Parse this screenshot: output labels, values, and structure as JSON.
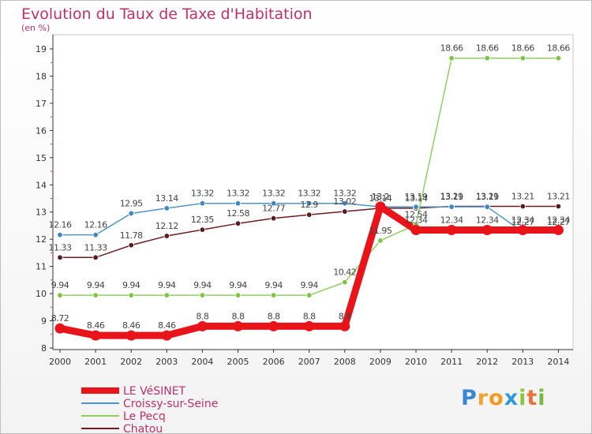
{
  "title": "Evolution du Taux de Taxe d'Habitation",
  "subtitle": "(en %)",
  "logo": {
    "text": "Proxiti",
    "letters": [
      "P",
      "r",
      "o",
      "x",
      "i",
      "t",
      "i"
    ],
    "colors": [
      "#3a86d6",
      "#f3a32f",
      "#f39a1f",
      "#2e9bd9",
      "#8cc63e",
      "#e8743b",
      "#78b83a"
    ]
  },
  "chart_data": {
    "type": "line",
    "x": [
      "2000",
      "2001",
      "2002",
      "2003",
      "2004",
      "2005",
      "2006",
      "2007",
      "2008",
      "2009",
      "2010",
      "2011",
      "2012",
      "2013",
      "2014"
    ],
    "yticks": [
      "8",
      "9",
      "10",
      "11",
      "12",
      "13",
      "14",
      "15",
      "16",
      "17",
      "18",
      "19"
    ],
    "ylim": [
      8,
      19
    ],
    "legend_position": "bottom-left",
    "series": [
      {
        "name": "Chatou",
        "color": "#6b1d23",
        "marker": "#5a1a1e",
        "values": [
          11.33,
          11.33,
          11.78,
          12.12,
          12.35,
          12.58,
          12.77,
          12.9,
          13.02,
          13.14,
          13.14,
          13.21,
          13.21,
          13.21,
          13.21
        ],
        "labels": [
          "11.33",
          "11.33",
          "11.78",
          "12.12",
          "12.35",
          "12.58",
          "12.77",
          "12.9",
          "13.02",
          "13.14",
          "13.14",
          "13.21",
          "13.21",
          "13.21",
          "13.21"
        ]
      },
      {
        "name": "Croissy-sur-Seine",
        "color": "#4f95c9",
        "marker": "#3f87c2",
        "values": [
          12.16,
          12.16,
          12.95,
          13.14,
          13.32,
          13.32,
          13.32,
          13.32,
          13.32,
          13.19,
          13.19,
          13.19,
          13.19,
          12.27,
          12.27
        ],
        "labels": [
          "12.16",
          "12.16",
          "12.95",
          "13.14",
          "13.32",
          "13.32",
          "13.32",
          "13.32",
          "13.32",
          "13.2",
          "13.19",
          "13.19",
          "13.19",
          "12.27",
          "12.27"
        ]
      },
      {
        "name": "Le Pecq",
        "color": "#8fd05a",
        "marker": "#7cc544",
        "values": [
          9.94,
          9.94,
          9.94,
          9.94,
          9.94,
          9.94,
          9.94,
          9.94,
          10.42,
          11.95,
          12.54,
          18.66,
          18.66,
          18.66,
          18.66
        ],
        "labels": [
          "9.94",
          "9.94",
          "9.94",
          "9.94",
          "9.94",
          "9.94",
          "9.94",
          "9.94",
          "10.42",
          "11.95",
          "12.54",
          "18.66",
          "18.66",
          "18.66",
          "18.66"
        ]
      },
      {
        "name": "LE VéSINET",
        "color": "#e8141a",
        "marker": "#e8141a",
        "values": [
          8.72,
          8.46,
          8.46,
          8.46,
          8.8,
          8.8,
          8.8,
          8.8,
          8.8,
          13.2,
          12.34,
          12.34,
          12.34,
          12.34,
          12.34
        ],
        "labels": [
          "8.72",
          "8.46",
          "8.46",
          "8.46",
          "8.8",
          "8.8",
          "8.8",
          "8.8",
          "8.8",
          "13.2",
          "12.34",
          "12.34",
          "12.34",
          "12.34",
          "12.34"
        ]
      }
    ],
    "legend_order": [
      "LE VéSINET",
      "Croissy-sur-Seine",
      "Le Pecq",
      "Chatou"
    ]
  }
}
